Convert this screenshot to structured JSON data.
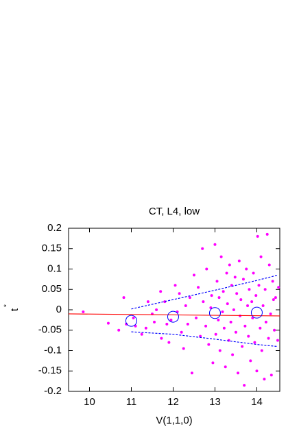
{
  "chart_data": {
    "type": "scatter",
    "title": "CT, L4, low",
    "xlabel": "V(1,1,0)",
    "ylabel": "t",
    "ylabel_sup": "*",
    "xlim": [
      9.5,
      14.55
    ],
    "ylim": [
      -0.2,
      0.2
    ],
    "xticks": [
      10,
      11,
      12,
      13,
      14
    ],
    "yticks": [
      -0.2,
      -0.15,
      -0.1,
      -0.05,
      0,
      0.05,
      0.1,
      0.15,
      0.2
    ],
    "points": {
      "color": "#ff00ff",
      "x": [
        9.85,
        10.45,
        10.7,
        10.82,
        10.88,
        11.05,
        11.1,
        11.25,
        11.35,
        11.4,
        11.5,
        11.55,
        11.6,
        11.7,
        11.72,
        11.8,
        11.85,
        11.9,
        11.95,
        12.05,
        12.1,
        12.15,
        12.2,
        12.25,
        12.3,
        12.35,
        12.4,
        12.45,
        12.5,
        12.55,
        12.6,
        12.65,
        12.7,
        12.72,
        12.78,
        12.8,
        12.85,
        12.9,
        12.92,
        12.95,
        13.0,
        13.02,
        13.05,
        13.08,
        13.1,
        13.12,
        13.15,
        13.18,
        13.2,
        13.22,
        13.25,
        13.28,
        13.3,
        13.33,
        13.35,
        13.38,
        13.4,
        13.42,
        13.45,
        13.48,
        13.5,
        13.52,
        13.55,
        13.58,
        13.6,
        13.62,
        13.65,
        13.68,
        13.7,
        13.72,
        13.75,
        13.78,
        13.8,
        13.82,
        13.85,
        13.88,
        13.9,
        13.92,
        13.95,
        13.98,
        14.0,
        14.02,
        14.05,
        14.08,
        14.1,
        14.12,
        14.15,
        14.18,
        14.2,
        14.22,
        14.25,
        14.28,
        14.3,
        14.33,
        14.35,
        14.38,
        14.4,
        14.42,
        14.45,
        14.5,
        14.52
      ],
      "values": [
        -0.005,
        -0.033,
        -0.05,
        0.03,
        -0.035,
        -0.02,
        -0.04,
        -0.06,
        -0.045,
        0.02,
        -0.01,
        -0.03,
        0.0,
        0.045,
        -0.07,
        0.02,
        -0.035,
        -0.08,
        -0.025,
        0.06,
        -0.005,
        0.04,
        -0.055,
        -0.095,
        0.01,
        -0.035,
        0.03,
        -0.155,
        0.085,
        -0.02,
        0.055,
        -0.065,
        0.15,
        0.02,
        -0.04,
        0.1,
        -0.085,
        0.005,
        0.035,
        -0.13,
        0.16,
        -0.06,
        0.07,
        -0.025,
        0.03,
        -0.1,
        0.13,
        -0.005,
        0.045,
        -0.045,
        -0.14,
        0.09,
        0.015,
        -0.075,
        0.11,
        -0.03,
        0.06,
        -0.11,
        0.0,
        0.08,
        -0.055,
        0.04,
        -0.155,
        0.12,
        -0.015,
        0.025,
        -0.09,
        0.075,
        -0.185,
        -0.04,
        0.1,
        0.01,
        -0.065,
        0.05,
        -0.125,
        0.02,
        -0.02,
        0.09,
        -0.08,
        0.035,
        -0.15,
        0.18,
        0.06,
        -0.045,
        0.13,
        -0.1,
        0.01,
        -0.17,
        0.05,
        -0.03,
        0.185,
        -0.07,
        0.11,
        -0.01,
        -0.16,
        0.07,
        0.025,
        -0.05,
        0.03,
        -0.075,
        0.055
      ]
    },
    "fit_line": {
      "color": "#ff0000",
      "x": [
        9.5,
        14.55
      ],
      "values": [
        -0.01,
        -0.015
      ]
    },
    "bin_means": {
      "color": "#0000ff",
      "x": [
        11,
        12,
        13,
        14
      ],
      "values": [
        -0.027,
        -0.017,
        -0.008,
        -0.007
      ]
    },
    "band_upper": {
      "color": "#0000ff",
      "x": [
        11,
        12,
        13,
        14,
        14.5
      ],
      "values": [
        0.002,
        0.025,
        0.048,
        0.072,
        0.085
      ]
    },
    "band_lower": {
      "color": "#0000ff",
      "x": [
        11,
        12,
        13,
        14,
        14.5
      ],
      "values": [
        -0.054,
        -0.06,
        -0.072,
        -0.085,
        -0.09
      ]
    }
  }
}
